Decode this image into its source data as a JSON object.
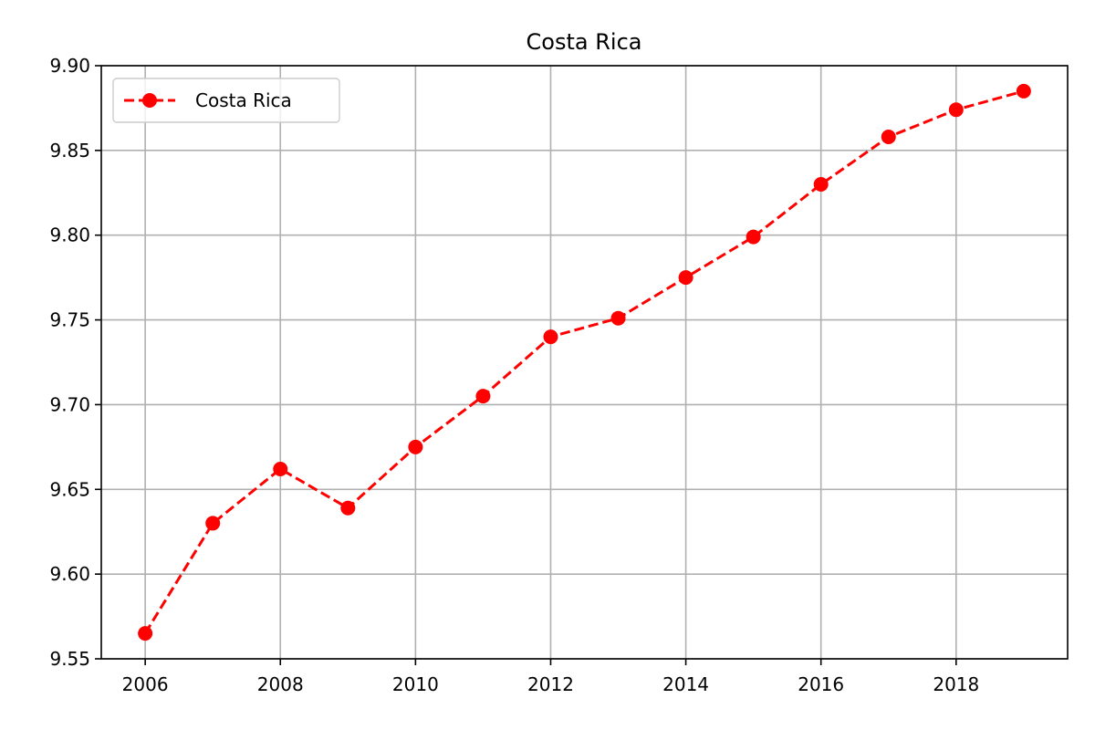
{
  "chart_data": {
    "type": "line",
    "title": "Costa Rica",
    "xlabel": "",
    "ylabel": "",
    "x": [
      2006,
      2007,
      2008,
      2009,
      2010,
      2011,
      2012,
      2013,
      2014,
      2015,
      2016,
      2017,
      2018,
      2019
    ],
    "series": [
      {
        "name": "Costa Rica",
        "values": [
          9.565,
          9.63,
          9.662,
          9.639,
          9.675,
          9.705,
          9.74,
          9.751,
          9.775,
          9.799,
          9.83,
          9.858,
          9.874,
          9.885
        ],
        "color": "#ff0000",
        "line_style": "dashed",
        "marker": "circle"
      }
    ],
    "xlim": [
      2005.35,
      2019.65
    ],
    "ylim": [
      9.55,
      9.9
    ],
    "xticks": [
      2006,
      2008,
      2010,
      2012,
      2014,
      2016,
      2018
    ],
    "xtick_labels": [
      "2006",
      "2008",
      "2010",
      "2012",
      "2014",
      "2016",
      "2018"
    ],
    "yticks": [
      9.55,
      9.6,
      9.65,
      9.7,
      9.75,
      9.8,
      9.85,
      9.9
    ],
    "ytick_labels": [
      "9.55",
      "9.60",
      "9.65",
      "9.70",
      "9.75",
      "9.80",
      "9.85",
      "9.90"
    ],
    "grid": true,
    "legend": {
      "placement": "top-left",
      "entries": [
        "Costa Rica"
      ]
    }
  }
}
